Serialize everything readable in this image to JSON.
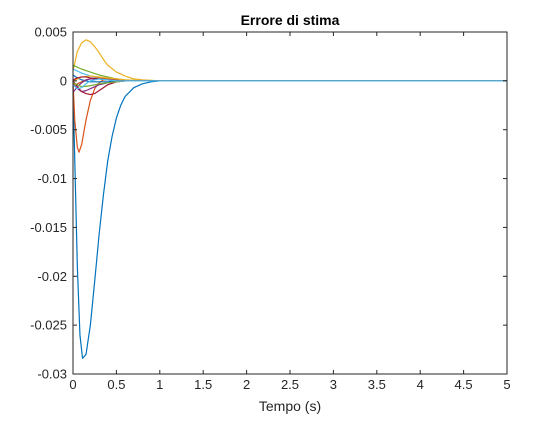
{
  "chart_data": {
    "type": "line",
    "title": "Errore di stima",
    "xlabel": "Tempo (s)",
    "ylabel": "",
    "xlim": [
      0,
      5
    ],
    "ylim": [
      -0.03,
      0.005
    ],
    "grid": false,
    "legend": "none",
    "x_tick_labels": [
      "0",
      "0.5",
      "1",
      "1.5",
      "2",
      "2.5",
      "3",
      "3.5",
      "4",
      "4.5",
      "5"
    ],
    "y_tick_labels": [
      "-0.03",
      "-0.025",
      "-0.02",
      "-0.015",
      "-0.01",
      "-0.005",
      "0",
      "0.005"
    ],
    "series": [
      {
        "color": "#0072BD",
        "x": [
          0,
          0.02,
          0.05,
          0.08,
          0.11,
          0.15,
          0.2,
          0.25,
          0.3,
          0.35,
          0.4,
          0.45,
          0.5,
          0.55,
          0.6,
          0.7,
          0.8,
          0.9,
          1.0,
          1.2,
          1.5,
          2,
          3,
          4,
          5
        ],
        "y": [
          -0.0005,
          -0.008,
          -0.019,
          -0.026,
          -0.0284,
          -0.028,
          -0.025,
          -0.0205,
          -0.0158,
          -0.0117,
          -0.0082,
          -0.0057,
          -0.0038,
          -0.0025,
          -0.0016,
          -0.0007,
          -0.0003,
          -0.0001,
          0,
          0,
          0,
          0,
          0,
          0,
          0
        ]
      },
      {
        "color": "#D95319",
        "x": [
          0,
          0.02,
          0.05,
          0.07,
          0.1,
          0.15,
          0.2,
          0.25,
          0.3,
          0.35,
          0.4,
          0.5,
          0.6,
          0.8,
          1,
          2,
          3,
          4,
          5
        ],
        "y": [
          0,
          -0.004,
          -0.0068,
          -0.0073,
          -0.0065,
          -0.004,
          -0.002,
          -0.0008,
          -0.0002,
          0.0001,
          0.0001,
          0.0001,
          5e-05,
          0,
          0,
          0,
          0,
          0,
          0
        ]
      },
      {
        "color": "#EDB120",
        "x": [
          0,
          0.05,
          0.1,
          0.15,
          0.2,
          0.25,
          0.3,
          0.35,
          0.4,
          0.5,
          0.6,
          0.7,
          0.8,
          1,
          1.2,
          2,
          3,
          4,
          5
        ],
        "y": [
          0.001,
          0.003,
          0.0039,
          0.0042,
          0.004,
          0.0035,
          0.0029,
          0.0022,
          0.0016,
          0.0009,
          0.0005,
          0.0002,
          0.0001,
          0,
          0,
          0,
          0,
          0,
          0
        ]
      },
      {
        "color": "#7E2F8E",
        "x": [
          0,
          0.05,
          0.1,
          0.15,
          0.2,
          0.3,
          0.4,
          0.5,
          0.6,
          0.8,
          1,
          2,
          3,
          4,
          5
        ],
        "y": [
          -0.0003,
          -0.0008,
          -0.0011,
          -0.001,
          -0.0008,
          -0.0004,
          -0.0002,
          -0.0001,
          0,
          0,
          0,
          0,
          0,
          0,
          0
        ]
      },
      {
        "color": "#77AC30",
        "x": [
          0,
          0.05,
          0.1,
          0.2,
          0.3,
          0.4,
          0.5,
          0.6,
          0.7,
          0.8,
          1,
          2,
          3,
          4,
          5
        ],
        "y": [
          0.0016,
          0.0014,
          0.0012,
          0.0009,
          0.0006,
          0.0004,
          0.0002,
          0.0001,
          5e-05,
          0,
          0,
          0,
          0,
          0,
          0
        ]
      },
      {
        "color": "#4DBEEE",
        "x": [
          0,
          0.05,
          0.1,
          0.2,
          0.3,
          0.4,
          0.5,
          0.7,
          0.8,
          1,
          2,
          3,
          4,
          5
        ],
        "y": [
          0.0012,
          0.001,
          0.0008,
          0.0005,
          0.0003,
          0.0002,
          0.0001,
          2e-05,
          0,
          0,
          0,
          0,
          0,
          0
        ]
      },
      {
        "color": "#A2142F",
        "x": [
          0,
          0.05,
          0.1,
          0.15,
          0.2,
          0.25,
          0.3,
          0.35,
          0.4,
          0.5,
          0.6,
          0.8,
          1,
          2,
          3,
          4,
          5
        ],
        "y": [
          0,
          -0.0006,
          -0.0011,
          -0.0013,
          -0.0014,
          -0.0013,
          -0.001,
          -0.0007,
          -0.0004,
          -0.0001,
          0,
          0,
          0,
          0,
          0,
          0,
          0
        ]
      },
      {
        "color": "#0072BD",
        "x": [
          0,
          0.05,
          0.1,
          0.15,
          0.2,
          0.3,
          0.4,
          0.5,
          0.6,
          0.8,
          1,
          2,
          3,
          4,
          5
        ],
        "y": [
          0.0006,
          0.0003,
          0.0001,
          0,
          -0.0001,
          -0.0001,
          -0.0001,
          0,
          0,
          0,
          0,
          0,
          0,
          0,
          0
        ]
      },
      {
        "color": "#D95319",
        "x": [
          0,
          0.05,
          0.1,
          0.15,
          0.2,
          0.3,
          0.4,
          0.5,
          0.6,
          0.8,
          1,
          2,
          3,
          4,
          5
        ],
        "y": [
          -0.0005,
          -0.0003,
          -0.0001,
          0.0001,
          0.0002,
          0.0003,
          0.0002,
          0.0001,
          0,
          0,
          0,
          0,
          0,
          0,
          0
        ]
      },
      {
        "color": "#EDB120",
        "x": [
          0,
          0.05,
          0.1,
          0.2,
          0.3,
          0.4,
          0.5,
          0.6,
          0.8,
          1,
          2,
          3,
          4,
          5
        ],
        "y": [
          0,
          0.0002,
          0.0004,
          0.0005,
          0.0004,
          0.0003,
          0.0002,
          0.0001,
          0,
          0,
          0,
          0,
          0,
          0
        ]
      },
      {
        "color": "#7E2F8E",
        "x": [
          0,
          0.05,
          0.1,
          0.15,
          0.2,
          0.3,
          0.4,
          0.6,
          0.8,
          1,
          2,
          3,
          4,
          5
        ],
        "y": [
          -0.0012,
          -0.0006,
          -0.0002,
          0.0001,
          0.0002,
          0.0002,
          0.0001,
          0,
          0,
          0,
          0,
          0,
          0,
          0
        ]
      },
      {
        "color": "#77AC30",
        "x": [
          0,
          0.05,
          0.1,
          0.2,
          0.3,
          0.4,
          0.5,
          0.6,
          0.8,
          1,
          2,
          3,
          4,
          5
        ],
        "y": [
          -0.0002,
          -0.0004,
          -0.0006,
          -0.0005,
          -0.0003,
          -0.0002,
          -0.0001,
          0,
          0,
          0,
          0,
          0,
          0,
          0
        ]
      },
      {
        "color": "#A2142F",
        "x": [
          0,
          0.05,
          0.1,
          0.15,
          0.2,
          0.3,
          0.4,
          0.5,
          0.6,
          0.8,
          1,
          2,
          3,
          4,
          5
        ],
        "y": [
          0.0001,
          0.0003,
          0.0004,
          0.0004,
          0.0003,
          0.0002,
          0.0001,
          0,
          0,
          0,
          0,
          0,
          0,
          0,
          0
        ]
      },
      {
        "color": "#4DBEEE",
        "x": [
          0,
          0.05,
          0.1,
          0.15,
          0.2,
          0.3,
          0.4,
          0.5,
          0.6,
          0.8,
          1,
          2,
          3,
          4,
          5
        ],
        "y": [
          -0.0004,
          -0.0008,
          -0.0007,
          -0.0003,
          0,
          0.0002,
          0.0001,
          0,
          0,
          0,
          0,
          0,
          0,
          0,
          0
        ]
      }
    ]
  }
}
